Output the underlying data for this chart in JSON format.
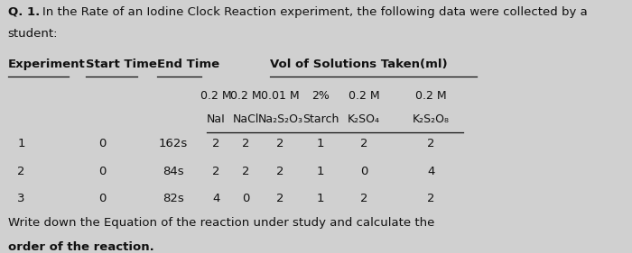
{
  "background_color": "#d0d0d0",
  "title_q": "Q. 1.",
  "title_rest": "In the Rate of an Iodine Clock Reaction experiment, the following data were collected by a",
  "title_line2": "student:",
  "col_headers_line1": [
    "0.2 M",
    "0.2 M",
    "0.01 M",
    "2%",
    "0.2 M",
    "0.2 M"
  ],
  "col_headers_line2": [
    "NaI",
    "NaCl",
    "Na₂S₂O₃",
    "Starch",
    "K₂SO₄",
    "K₂S₂O₈"
  ],
  "main_headers": [
    "Experiment",
    "Start Time",
    "End Time",
    "Vol of Solutions Taken(ml)"
  ],
  "data_rows": [
    [
      "1",
      "0",
      "162s",
      "2",
      "2",
      "2",
      "1",
      "2",
      "2"
    ],
    [
      "2",
      "0",
      "84s",
      "2",
      "2",
      "2",
      "1",
      "0",
      "4"
    ],
    [
      "3",
      "0",
      "82s",
      "4",
      "0",
      "2",
      "1",
      "2",
      "2"
    ]
  ],
  "footer_line1": "Write down the Equation of the reaction under study and calculate the",
  "footer_line2": "order of the reaction.",
  "fs": 9.5,
  "tc": "#111111"
}
